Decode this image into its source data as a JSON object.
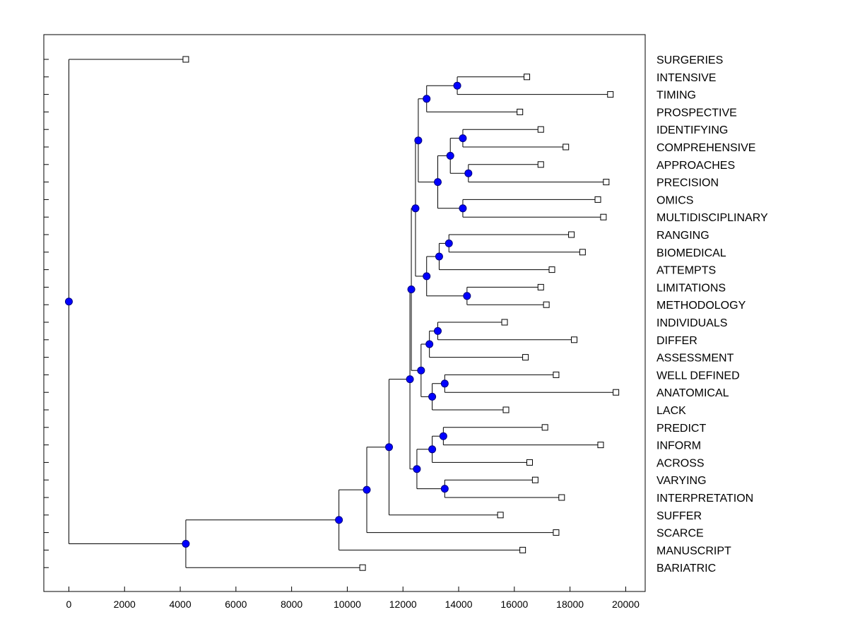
{
  "chart_data": {
    "type": "dendrogram",
    "title": "",
    "xlabel": "",
    "ylabel": "",
    "xlim": [
      -900,
      20700
    ],
    "x_ticks": [
      0,
      2000,
      4000,
      6000,
      8000,
      10000,
      12000,
      14000,
      16000,
      18000,
      20000
    ],
    "colors": {
      "node_fill": "#0000ff",
      "node_stroke": "#000080",
      "line": "#000000",
      "leaf_fill": "#ffffff"
    },
    "leaves": [
      {
        "name": "SURGERIES",
        "x": 4200
      },
      {
        "name": "INTENSIVE",
        "x": 16450
      },
      {
        "name": "TIMING",
        "x": 19450
      },
      {
        "name": "PROSPECTIVE",
        "x": 16200
      },
      {
        "name": "IDENTIFYING",
        "x": 16950
      },
      {
        "name": "COMPREHENSIVE",
        "x": 17850
      },
      {
        "name": "APPROACHES",
        "x": 16950
      },
      {
        "name": "PRECISION",
        "x": 19300
      },
      {
        "name": "OMICS",
        "x": 19000
      },
      {
        "name": "MULTIDISCIPLINARY",
        "x": 19200
      },
      {
        "name": "RANGING",
        "x": 18050
      },
      {
        "name": "BIOMEDICAL",
        "x": 18450
      },
      {
        "name": "ATTEMPTS",
        "x": 17350
      },
      {
        "name": "LIMITATIONS",
        "x": 16950
      },
      {
        "name": "METHODOLOGY",
        "x": 17150
      },
      {
        "name": "INDIVIDUALS",
        "x": 15650
      },
      {
        "name": "DIFFER",
        "x": 18150
      },
      {
        "name": "ASSESSMENT",
        "x": 16400
      },
      {
        "name": "WELL DEFINED",
        "x": 17500
      },
      {
        "name": "ANATOMICAL",
        "x": 19650
      },
      {
        "name": "LACK",
        "x": 15700
      },
      {
        "name": "PREDICT",
        "x": 17100
      },
      {
        "name": "INFORM",
        "x": 19100
      },
      {
        "name": "ACROSS",
        "x": 16550
      },
      {
        "name": "VARYING",
        "x": 16750
      },
      {
        "name": "INTERPRETATION",
        "x": 17700
      },
      {
        "name": "SUFFER",
        "x": 15500
      },
      {
        "name": "SCARCE",
        "x": 17500
      },
      {
        "name": "MANUSCRIPT",
        "x": 16300
      },
      {
        "name": "BARIATRIC",
        "x": 10550
      }
    ],
    "merges": [
      {
        "id": "n1",
        "x": 13950,
        "children": [
          1,
          2
        ]
      },
      {
        "id": "n2",
        "x": 12850,
        "children": [
          "n1",
          3
        ]
      },
      {
        "id": "n3",
        "x": 14150,
        "children": [
          4,
          5
        ]
      },
      {
        "id": "n4",
        "x": 14350,
        "children": [
          6,
          7
        ]
      },
      {
        "id": "n5",
        "x": 13700,
        "children": [
          "n3",
          "n4"
        ]
      },
      {
        "id": "n6",
        "x": 14150,
        "children": [
          8,
          9
        ]
      },
      {
        "id": "n7",
        "x": 13250,
        "children": [
          "n5",
          "n6"
        ]
      },
      {
        "id": "n8",
        "x": 12550,
        "children": [
          "n2",
          "n7"
        ]
      },
      {
        "id": "n9",
        "x": 13650,
        "children": [
          10,
          11
        ]
      },
      {
        "id": "n10",
        "x": 13300,
        "children": [
          "n9",
          12
        ]
      },
      {
        "id": "n11",
        "x": 14300,
        "children": [
          13,
          14
        ]
      },
      {
        "id": "n12",
        "x": 12850,
        "children": [
          "n10",
          "n11"
        ]
      },
      {
        "id": "n13",
        "x": 12450,
        "children": [
          "n8",
          "n12"
        ]
      },
      {
        "id": "n14",
        "x": 13250,
        "children": [
          15,
          16
        ]
      },
      {
        "id": "n15",
        "x": 12950,
        "children": [
          "n14",
          17
        ]
      },
      {
        "id": "n16",
        "x": 13500,
        "children": [
          18,
          19
        ]
      },
      {
        "id": "n17",
        "x": 13050,
        "children": [
          "n16",
          20
        ]
      },
      {
        "id": "n18",
        "x": 12650,
        "children": [
          "n15",
          "n17"
        ]
      },
      {
        "id": "n19",
        "x": 12300,
        "children": [
          "n13",
          "n18"
        ]
      },
      {
        "id": "n20",
        "x": 13450,
        "children": [
          21,
          22
        ]
      },
      {
        "id": "n21",
        "x": 13050,
        "children": [
          "n20",
          23
        ]
      },
      {
        "id": "n22",
        "x": 13500,
        "children": [
          24,
          25
        ]
      },
      {
        "id": "n23",
        "x": 12500,
        "children": [
          "n21",
          "n22"
        ]
      },
      {
        "id": "n24",
        "x": 12250,
        "children": [
          "n19",
          "n23"
        ]
      },
      {
        "id": "n25",
        "x": 11500,
        "children": [
          "n24",
          26
        ]
      },
      {
        "id": "n26",
        "x": 10700,
        "children": [
          "n25",
          27
        ]
      },
      {
        "id": "n27",
        "x": 9700,
        "children": [
          "n26",
          28
        ]
      },
      {
        "id": "n28",
        "x": 4200,
        "children": [
          "n27",
          29
        ]
      },
      {
        "id": "n29",
        "x": 0,
        "children": [
          0,
          "n28"
        ]
      }
    ]
  }
}
